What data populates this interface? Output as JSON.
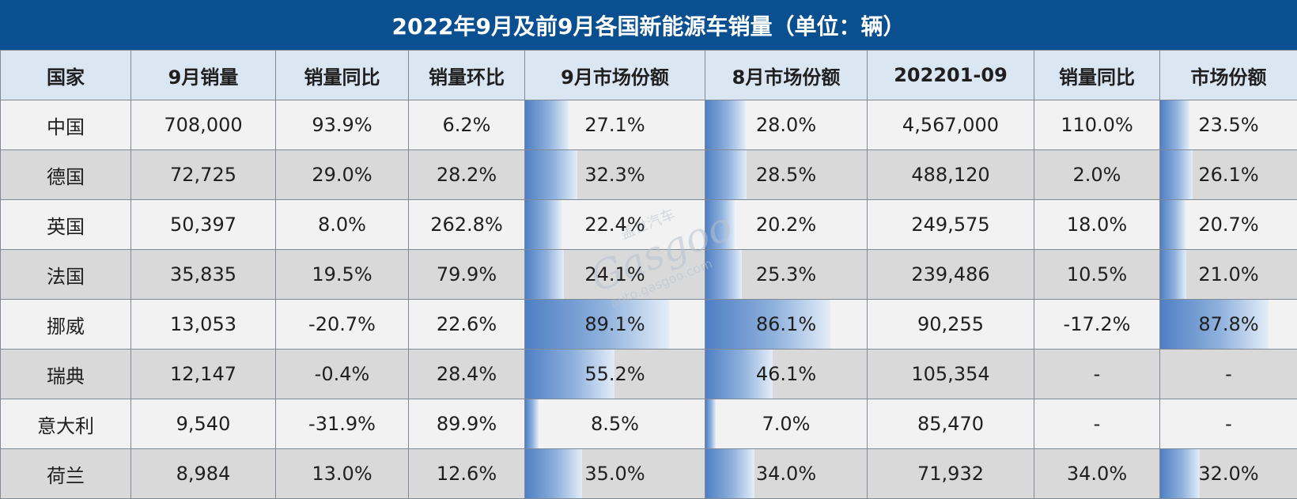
{
  "title": "2022年9月及前9月各国新能源车销量（单位：辆）",
  "headers": [
    "国家",
    "9月销量",
    "销量同比",
    "销量环比",
    "9月市场份额",
    "8月市场份额",
    "202201-09",
    "销量同比",
    "市场份额"
  ],
  "rows": [
    {
      "country": "中国",
      "sep_sales": "708,000",
      "yoy": "93.9%",
      "mom": "6.2%",
      "sep_share": "27.1%",
      "sep_share_value": 27.1,
      "aug_share": "28.0%",
      "aug_share_value": 28.0,
      "ytd_sales": "4,567,000",
      "ytd_yoy": "110.0%",
      "ytd_share": "23.5%",
      "ytd_share_value": 23.5
    },
    {
      "country": "德国",
      "sep_sales": "72,725",
      "yoy": "29.0%",
      "mom": "28.2%",
      "sep_share": "32.3%",
      "sep_share_value": 32.3,
      "aug_share": "28.5%",
      "aug_share_value": 28.5,
      "ytd_sales": "488,120",
      "ytd_yoy": "2.0%",
      "ytd_share": "26.1%",
      "ytd_share_value": 26.1
    },
    {
      "country": "英国",
      "sep_sales": "50,397",
      "yoy": "8.0%",
      "mom": "262.8%",
      "sep_share": "22.4%",
      "sep_share_value": 22.4,
      "aug_share": "20.2%",
      "aug_share_value": 20.2,
      "ytd_sales": "249,575",
      "ytd_yoy": "18.0%",
      "ytd_share": "20.7%",
      "ytd_share_value": 20.7
    },
    {
      "country": "法国",
      "sep_sales": "35,835",
      "yoy": "19.5%",
      "mom": "79.9%",
      "sep_share": "24.1%",
      "sep_share_value": 24.1,
      "aug_share": "25.3%",
      "aug_share_value": 25.3,
      "ytd_sales": "239,486",
      "ytd_yoy": "10.5%",
      "ytd_share": "21.0%",
      "ytd_share_value": 21.0
    },
    {
      "country": "挪威",
      "sep_sales": "13,053",
      "yoy": "-20.7%",
      "mom": "22.6%",
      "sep_share": "89.1%",
      "sep_share_value": 89.1,
      "aug_share": "86.1%",
      "aug_share_value": 86.1,
      "ytd_sales": "90,255",
      "ytd_yoy": "-17.2%",
      "ytd_share": "87.8%",
      "ytd_share_value": 87.8
    },
    {
      "country": "瑞典",
      "sep_sales": "12,147",
      "yoy": "-0.4%",
      "mom": "28.4%",
      "sep_share": "55.2%",
      "sep_share_value": 55.2,
      "aug_share": "46.1%",
      "aug_share_value": 46.1,
      "ytd_sales": "105,354",
      "ytd_yoy": "-",
      "ytd_share": "-",
      "ytd_share_value": 0
    },
    {
      "country": "意大利",
      "sep_sales": "9,540",
      "yoy": "-31.9%",
      "mom": "89.9%",
      "sep_share": "8.5%",
      "sep_share_value": 8.5,
      "aug_share": "7.0%",
      "aug_share_value": 7.0,
      "ytd_sales": "85,470",
      "ytd_yoy": "-",
      "ytd_share": "-",
      "ytd_share_value": 0
    },
    {
      "country": "荷兰",
      "sep_sales": "8,984",
      "yoy": "13.0%",
      "mom": "12.6%",
      "sep_share": "35.0%",
      "sep_share_value": 35.0,
      "aug_share": "34.0%",
      "aug_share_value": 34.0,
      "ytd_sales": "71,932",
      "ytd_yoy": "34.0%",
      "ytd_share": "32.0%",
      "ytd_share_value": 32.0
    }
  ],
  "colors": {
    "header_bar": "#0a4f8f",
    "positive": "#e0202a",
    "negative": "#1ea44a",
    "bar": "#4f7fc3"
  },
  "watermark": {
    "brand": "Gasgoo",
    "cn": "盖世汽车",
    "url": "auto.gasgoo.com"
  }
}
